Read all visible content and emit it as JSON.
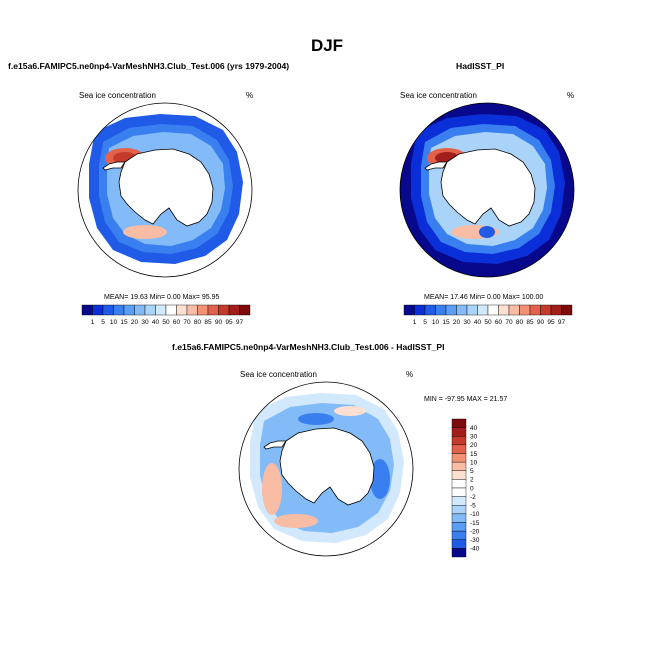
{
  "figure": {
    "season": "DJF"
  },
  "panels": [
    {
      "title": "f.e15a6.FAMIPC5.ne0np4-VarMeshNH3.Club_Test.006 (yrs 1979-2004)",
      "subtitle": "Sea ice concentration",
      "units": "%",
      "stats": "MEAN=  19.63  Min=   0.00  Max=  95.95"
    },
    {
      "title": "HadISST_PI",
      "subtitle": "Sea ice concentration",
      "units": "%",
      "stats": "MEAN=  17.46  Min=   0.00  Max= 100.00"
    },
    {
      "title": "f.e15a6.FAMIPC5.ne0np4-VarMeshNH3.Club_Test.006 - HadISST_PI",
      "subtitle": "Sea ice concentration",
      "units": "%",
      "stats": "MIN = -97.95 MAX =  21.57"
    }
  ],
  "chart_data": [
    {
      "type": "heatmap",
      "projection": "south-polar-stereographic",
      "title": "f.e15a6.FAMIPC5.ne0np4-VarMeshNH3.Club_Test.006 (yrs 1979-2004)",
      "variable": "Sea ice concentration",
      "units": "%",
      "mean": 19.63,
      "min": 0.0,
      "max": 95.95,
      "colorbar_levels": [
        1,
        5,
        10,
        15,
        20,
        30,
        40,
        50,
        60,
        70,
        80,
        85,
        90,
        95,
        97
      ],
      "colorbar_colors": [
        "#08088c",
        "#0a2fd8",
        "#1f5be6",
        "#3a7ff0",
        "#5a9ef5",
        "#82bbf7",
        "#aad3fa",
        "#d2e8fc",
        "#ffffff",
        "#fde0d2",
        "#f9bca4",
        "#f39273",
        "#e2614a",
        "#c53a2b",
        "#a31e1a",
        "#7d0b0b"
      ]
    },
    {
      "type": "heatmap",
      "projection": "south-polar-stereographic",
      "title": "HadISST_PI",
      "variable": "Sea ice concentration",
      "units": "%",
      "mean": 17.46,
      "min": 0.0,
      "max": 100.0,
      "colorbar_levels": [
        1,
        5,
        10,
        15,
        20,
        30,
        40,
        50,
        60,
        70,
        80,
        85,
        90,
        95,
        97
      ],
      "colorbar_colors": [
        "#08088c",
        "#0a2fd8",
        "#1f5be6",
        "#3a7ff0",
        "#5a9ef5",
        "#82bbf7",
        "#aad3fa",
        "#d2e8fc",
        "#ffffff",
        "#fde0d2",
        "#f9bca4",
        "#f39273",
        "#e2614a",
        "#c53a2b",
        "#a31e1a",
        "#7d0b0b"
      ]
    },
    {
      "type": "heatmap",
      "projection": "south-polar-stereographic",
      "title": "f.e15a6.FAMIPC5.ne0np4-VarMeshNH3.Club_Test.006 - HadISST_PI",
      "variable": "Sea ice concentration",
      "units": "%",
      "min": -97.95,
      "max": 21.57,
      "colorbar_orientation": "vertical",
      "colorbar_levels": [
        40,
        30,
        20,
        15,
        10,
        5,
        2,
        0,
        -2,
        -5,
        -10,
        -15,
        -20,
        -30,
        -40
      ],
      "colorbar_colors": [
        "#7d0b0b",
        "#a31e1a",
        "#c53a2b",
        "#e2614a",
        "#f39273",
        "#f9bca4",
        "#fde0d2",
        "#ffffff",
        "#ffffff",
        "#d2e8fc",
        "#aad3fa",
        "#82bbf7",
        "#5a9ef5",
        "#3a7ff0",
        "#1f5be6",
        "#08088c"
      ]
    }
  ]
}
